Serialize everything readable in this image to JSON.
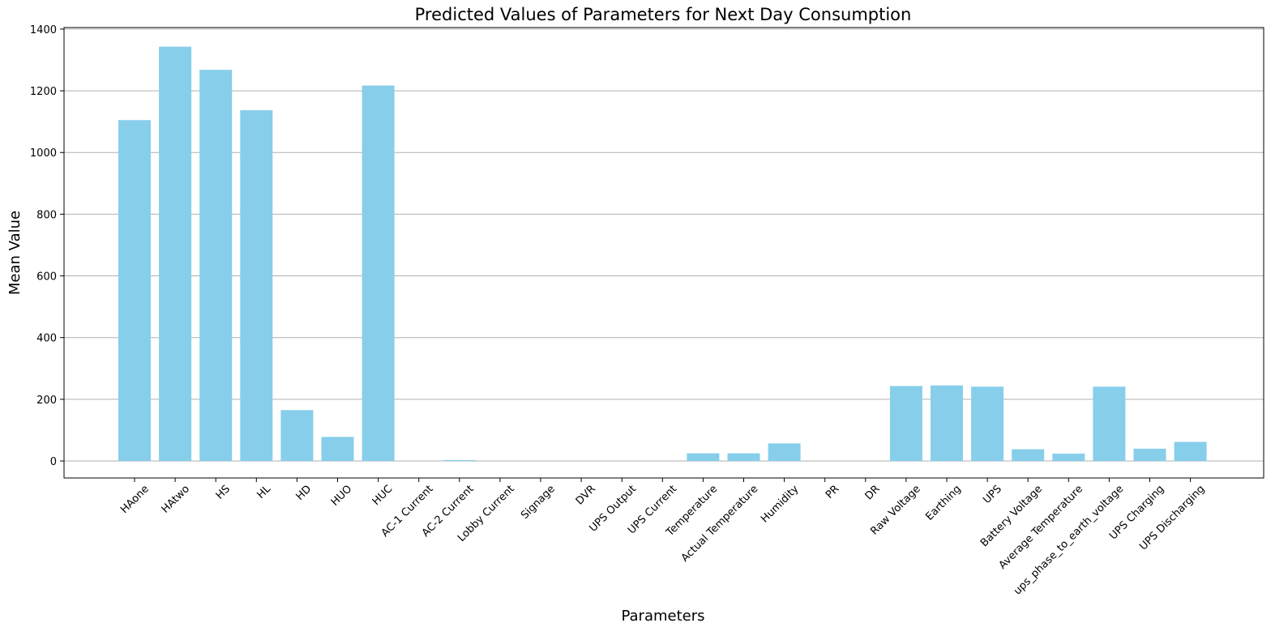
{
  "chart_data": {
    "type": "bar",
    "title": "Predicted Values of Parameters for Next Day Consumption",
    "xlabel": "Parameters",
    "ylabel": "Mean Value",
    "ylim": [
      -55,
      1405
    ],
    "yticks": [
      0,
      200,
      400,
      600,
      800,
      1000,
      1200,
      1400
    ],
    "grid": "horizontal",
    "bar_color": "#87CEEB",
    "categories": [
      "HAone",
      "HAtwo",
      "HS",
      "HL",
      "HD",
      "HUO",
      "HUC",
      "AC-1 Current",
      "AC-2 Current",
      "Lobby Current",
      "Signage",
      "DVR",
      "UPS Output",
      "UPS Current",
      "Temperature",
      "Actual Temperature",
      "Humidity",
      "PR",
      "DR",
      "Raw Voltage",
      "Earthing",
      "UPS",
      "Battery Voltage",
      "Average Temperature",
      "ups_phase_to_earth_voltage",
      "UPS Charging",
      "UPS Discharging"
    ],
    "values": [
      1105,
      1343,
      1268,
      1137,
      165,
      78,
      1217,
      0,
      3,
      0,
      0,
      0,
      0,
      0,
      25,
      25,
      57,
      0,
      0,
      243,
      245,
      241,
      38,
      24,
      241,
      40,
      62
    ]
  }
}
